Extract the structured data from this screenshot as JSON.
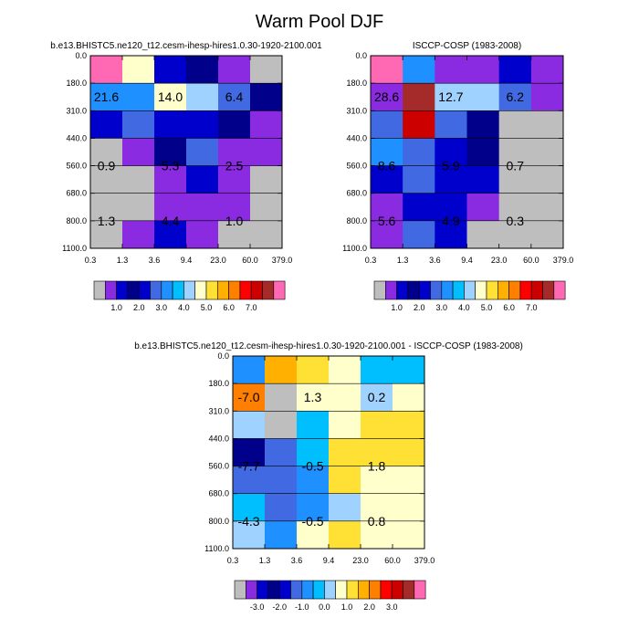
{
  "title": "Warm Pool DJF",
  "colors": {
    "palette": [
      "#bebebe",
      "#8a2be2",
      "#0000cd",
      "#00008b",
      "#0000cd",
      "#4169e1",
      "#1e90ff",
      "#00bfff",
      "#a0d2ff",
      "#ffffcc",
      "#ffe135",
      "#ffb000",
      "#ff7f00",
      "#ff0000",
      "#cd0000",
      "#a52a2a",
      "#ff69b4"
    ],
    "colorbar_order": [
      "#bebebe",
      "#8a2be2",
      "#0000cd",
      "#00008b",
      "#0000cd",
      "#4169e1",
      "#1e90ff",
      "#00bfff",
      "#a0d2ff",
      "#ffffcc",
      "#ffe135",
      "#ffb000",
      "#ff7f00",
      "#ff0000",
      "#cd0000",
      "#a52a2a",
      "#ff69b4"
    ]
  },
  "chart_data": [
    {
      "type": "heatmap",
      "title": "b.e13.BHISTC5.ne120_t12.cesm-ihesp-hires1.0.30-1920-2100.001",
      "x_ticks": [
        "0.3",
        "1.3",
        "3.6",
        "9.4",
        "23.0",
        "60.0",
        "379.0"
      ],
      "y_ticks": [
        "0.0",
        "180.0",
        "310.0",
        "440.0",
        "560.0",
        "680.0",
        "800.0",
        "1100.0"
      ],
      "cells": [
        [
          "#ff69b4",
          "#ffffcc",
          "#0000cd",
          "#00008b",
          "#8a2be2",
          "#bebebe"
        ],
        [
          "#1e90ff",
          "#1e90ff",
          "#ffffcc",
          "#a0d2ff",
          "#4169e1",
          "#00008b"
        ],
        [
          "#0000cd",
          "#4169e1",
          "#0000cd",
          "#0000cd",
          "#00008b",
          "#8a2be2"
        ],
        [
          "#bebebe",
          "#8a2be2",
          "#00008b",
          "#4169e1",
          "#8a2be2",
          "#8a2be2"
        ],
        [
          "#bebebe",
          "#bebebe",
          "#8a2be2",
          "#0000cd",
          "#8a2be2",
          "#bebebe"
        ],
        [
          "#bebebe",
          "#bebebe",
          "#8a2be2",
          "#8a2be2",
          "#8a2be2",
          "#bebebe"
        ],
        [
          "#bebebe",
          "#8a2be2",
          "#0000cd",
          "#8a2be2",
          "#bebebe",
          "#bebebe"
        ]
      ],
      "annotations": [
        {
          "text": "21.6",
          "col": 0.5,
          "row": 1.5
        },
        {
          "text": "14.0",
          "col": 2.5,
          "row": 1.5
        },
        {
          "text": "6.4",
          "col": 4.5,
          "row": 1.5
        },
        {
          "text": "0.9",
          "col": 0.5,
          "row": 4.0
        },
        {
          "text": "5.3",
          "col": 2.5,
          "row": 4.0
        },
        {
          "text": "2.5",
          "col": 4.5,
          "row": 4.0
        },
        {
          "text": "1.3",
          "col": 0.5,
          "row": 6.0
        },
        {
          "text": "4.4",
          "col": 2.5,
          "row": 6.0
        },
        {
          "text": "1.0",
          "col": 4.5,
          "row": 6.0
        }
      ],
      "colorbar_labels": [
        "1.0",
        "2.0",
        "3.0",
        "4.0",
        "5.0",
        "6.0",
        "7.0"
      ]
    },
    {
      "type": "heatmap",
      "title": "ISCCP-COSP (1983-2008)",
      "x_ticks": [
        "0.3",
        "1.3",
        "3.6",
        "9.4",
        "23.0",
        "60.0",
        "379.0"
      ],
      "y_ticks": [
        "0.0",
        "180.0",
        "310.0",
        "440.0",
        "560.0",
        "680.0",
        "800.0",
        "1100.0"
      ],
      "cells": [
        [
          "#ff69b4",
          "#1e90ff",
          "#8a2be2",
          "#8a2be2",
          "#0000cd",
          "#8a2be2"
        ],
        [
          "#8a2be2",
          "#a52a2a",
          "#a0d2ff",
          "#a0d2ff",
          "#4169e1",
          "#8a2be2"
        ],
        [
          "#4169e1",
          "#cd0000",
          "#4169e1",
          "#00008b",
          "#bebebe",
          "#bebebe"
        ],
        [
          "#1e90ff",
          "#4169e1",
          "#0000cd",
          "#00008b",
          "#bebebe",
          "#bebebe"
        ],
        [
          "#0000cd",
          "#4169e1",
          "#0000cd",
          "#0000cd",
          "#bebebe",
          "#bebebe"
        ],
        [
          "#8a2be2",
          "#0000cd",
          "#0000cd",
          "#8a2be2",
          "#bebebe",
          "#bebebe"
        ],
        [
          "#8a2be2",
          "#4169e1",
          "#0000cd",
          "#bebebe",
          "#bebebe",
          "#bebebe"
        ]
      ],
      "annotations": [
        {
          "text": "28.6",
          "col": 0.5,
          "row": 1.5
        },
        {
          "text": "12.7",
          "col": 2.5,
          "row": 1.5
        },
        {
          "text": "6.2",
          "col": 4.5,
          "row": 1.5
        },
        {
          "text": "8.6",
          "col": 0.5,
          "row": 4.0
        },
        {
          "text": "5.9",
          "col": 2.5,
          "row": 4.0
        },
        {
          "text": "0.7",
          "col": 4.5,
          "row": 4.0
        },
        {
          "text": "5.6",
          "col": 0.5,
          "row": 6.0
        },
        {
          "text": "4.9",
          "col": 2.5,
          "row": 6.0
        },
        {
          "text": "0.3",
          "col": 4.5,
          "row": 6.0
        }
      ],
      "colorbar_labels": [
        "1.0",
        "2.0",
        "3.0",
        "4.0",
        "5.0",
        "6.0",
        "7.0"
      ]
    },
    {
      "type": "heatmap",
      "title": "b.e13.BHISTC5.ne120_t12.cesm-ihesp-hires1.0.30-1920-2100.001 - ISCCP-COSP (1983-2008)",
      "x_ticks": [
        "0.3",
        "1.3",
        "3.6",
        "9.4",
        "23.0",
        "60.0",
        "379.0"
      ],
      "y_ticks": [
        "0.0",
        "180.0",
        "310.0",
        "440.0",
        "560.0",
        "680.0",
        "800.0",
        "1100.0"
      ],
      "cells": [
        [
          "#1e90ff",
          "#ffb000",
          "#ffe135",
          "#ffffcc",
          "#00bfff",
          "#00bfff"
        ],
        [
          "#ff7f00",
          "#bebebe",
          "#ffffcc",
          "#ffffcc",
          "#a0d2ff",
          "#ffffcc"
        ],
        [
          "#a0d2ff",
          "#bebebe",
          "#00bfff",
          "#ffffcc",
          "#ffe135",
          "#ffe135"
        ],
        [
          "#00008b",
          "#4169e1",
          "#00bfff",
          "#ffe135",
          "#ffe135",
          "#ffe135"
        ],
        [
          "#4169e1",
          "#4169e1",
          "#1e90ff",
          "#ffe135",
          "#ffffcc",
          "#ffffcc"
        ],
        [
          "#00bfff",
          "#4169e1",
          "#1e90ff",
          "#a0d2ff",
          "#ffffcc",
          "#ffffcc"
        ],
        [
          "#a0d2ff",
          "#1e90ff",
          "#ffffcc",
          "#ffe135",
          "#ffffcc",
          "#ffffcc"
        ]
      ],
      "annotations": [
        {
          "text": "-7.0",
          "col": 0.5,
          "row": 1.5
        },
        {
          "text": "1.3",
          "col": 2.5,
          "row": 1.5
        },
        {
          "text": "0.2",
          "col": 4.5,
          "row": 1.5
        },
        {
          "text": "-7.7",
          "col": 0.5,
          "row": 4.0
        },
        {
          "text": "-0.5",
          "col": 2.5,
          "row": 4.0
        },
        {
          "text": "1.8",
          "col": 4.5,
          "row": 4.0
        },
        {
          "text": "-4.3",
          "col": 0.5,
          "row": 6.0
        },
        {
          "text": "-0.5",
          "col": 2.5,
          "row": 6.0
        },
        {
          "text": "0.8",
          "col": 4.5,
          "row": 6.0
        }
      ],
      "colorbar_labels": [
        "-3.0",
        "-2.0",
        "-1.0",
        "0.0",
        "1.0",
        "2.0",
        "3.0"
      ]
    }
  ]
}
